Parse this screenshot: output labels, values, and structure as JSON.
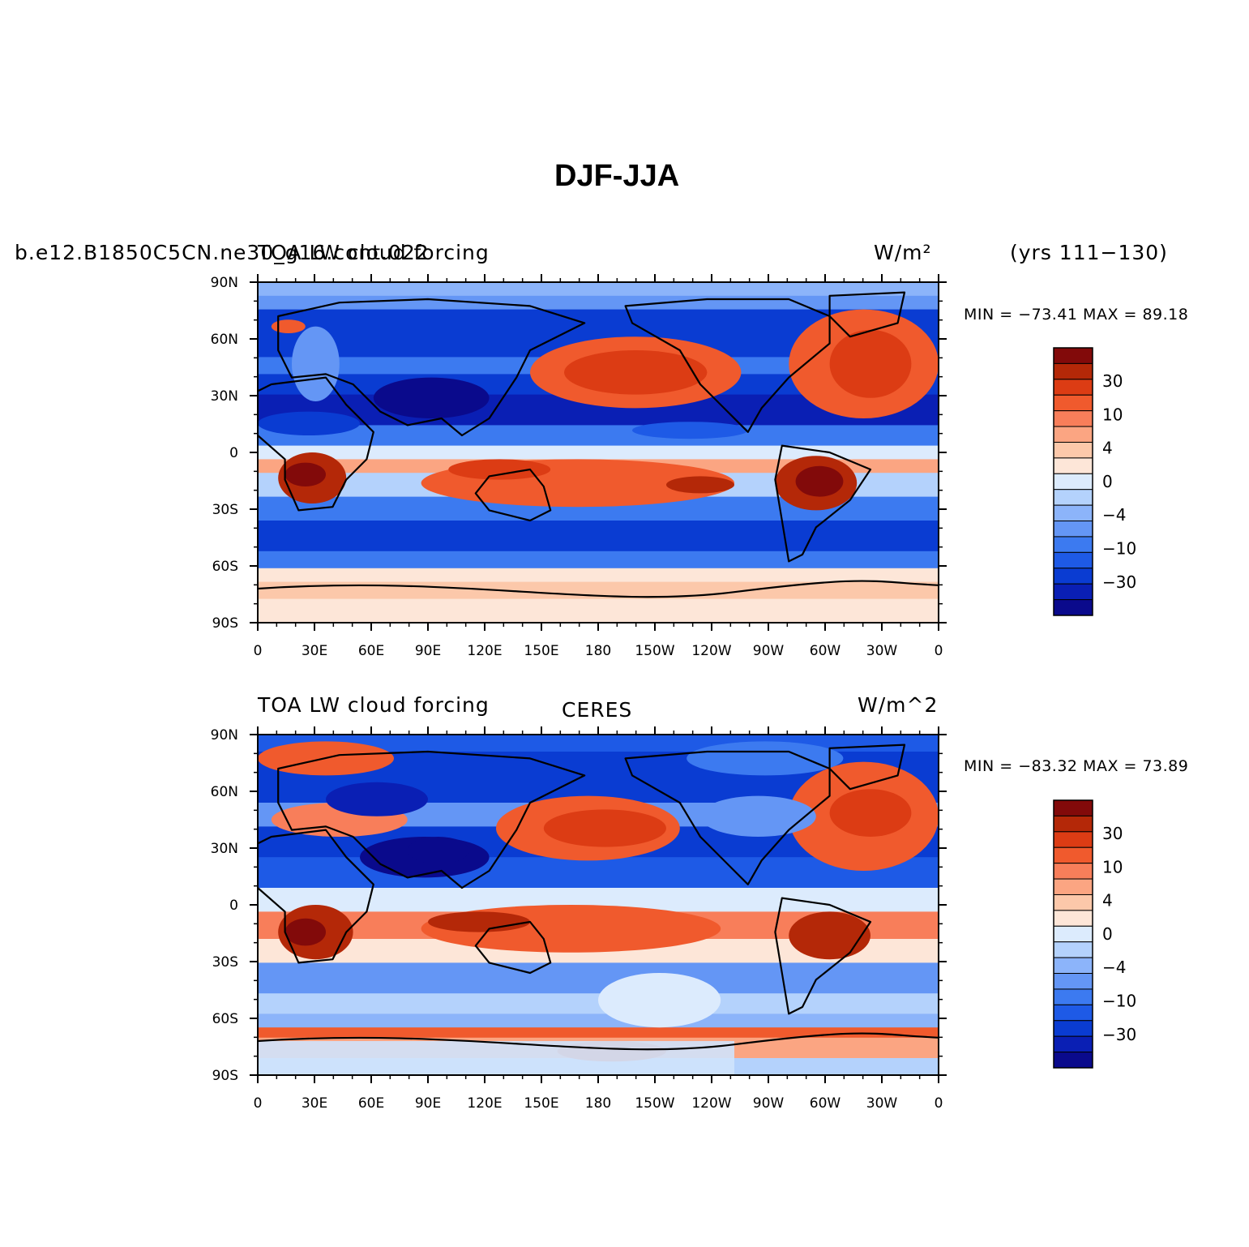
{
  "title": "DJF-JJA",
  "colorbar": {
    "colors": [
      "#0a0a8c",
      "#0a1fb4",
      "#0a3cd2",
      "#1e5ae6",
      "#3c7af0",
      "#6496f5",
      "#8cb4fa",
      "#b4d2fc",
      "#dcebfd",
      "#fde6d8",
      "#fcc8aa",
      "#fba582",
      "#f87e5a",
      "#f05a2d",
      "#dc3c14",
      "#b42808",
      "#820a0a"
    ],
    "labels": [
      "30",
      "10",
      "4",
      "0",
      "−4",
      "−10",
      "−30"
    ]
  },
  "panels": [
    {
      "left_text": "b.e12.B1850C5CN.ne30_g16.cont.022",
      "left_text2": "TOA LW cloud forcing",
      "center_text": "",
      "units": "W/m²",
      "right_text": "(yrs 111−130)",
      "stats": "MIN = −73.41 MAX =  89.18"
    },
    {
      "left_text": "TOA LW cloud forcing",
      "left_text2": "",
      "center_text": "CERES",
      "units": "W/m^2",
      "right_text": "",
      "stats": "MIN = −83.32 MAX =  73.89"
    }
  ],
  "lat_labels": [
    "90N",
    "60N",
    "30N",
    "0",
    "30S",
    "60S",
    "90S"
  ],
  "lon_labels": [
    "0",
    "30E",
    "60E",
    "90E",
    "120E",
    "150E",
    "180",
    "150W",
    "120W",
    "90W",
    "60W",
    "30W",
    "0"
  ]
}
